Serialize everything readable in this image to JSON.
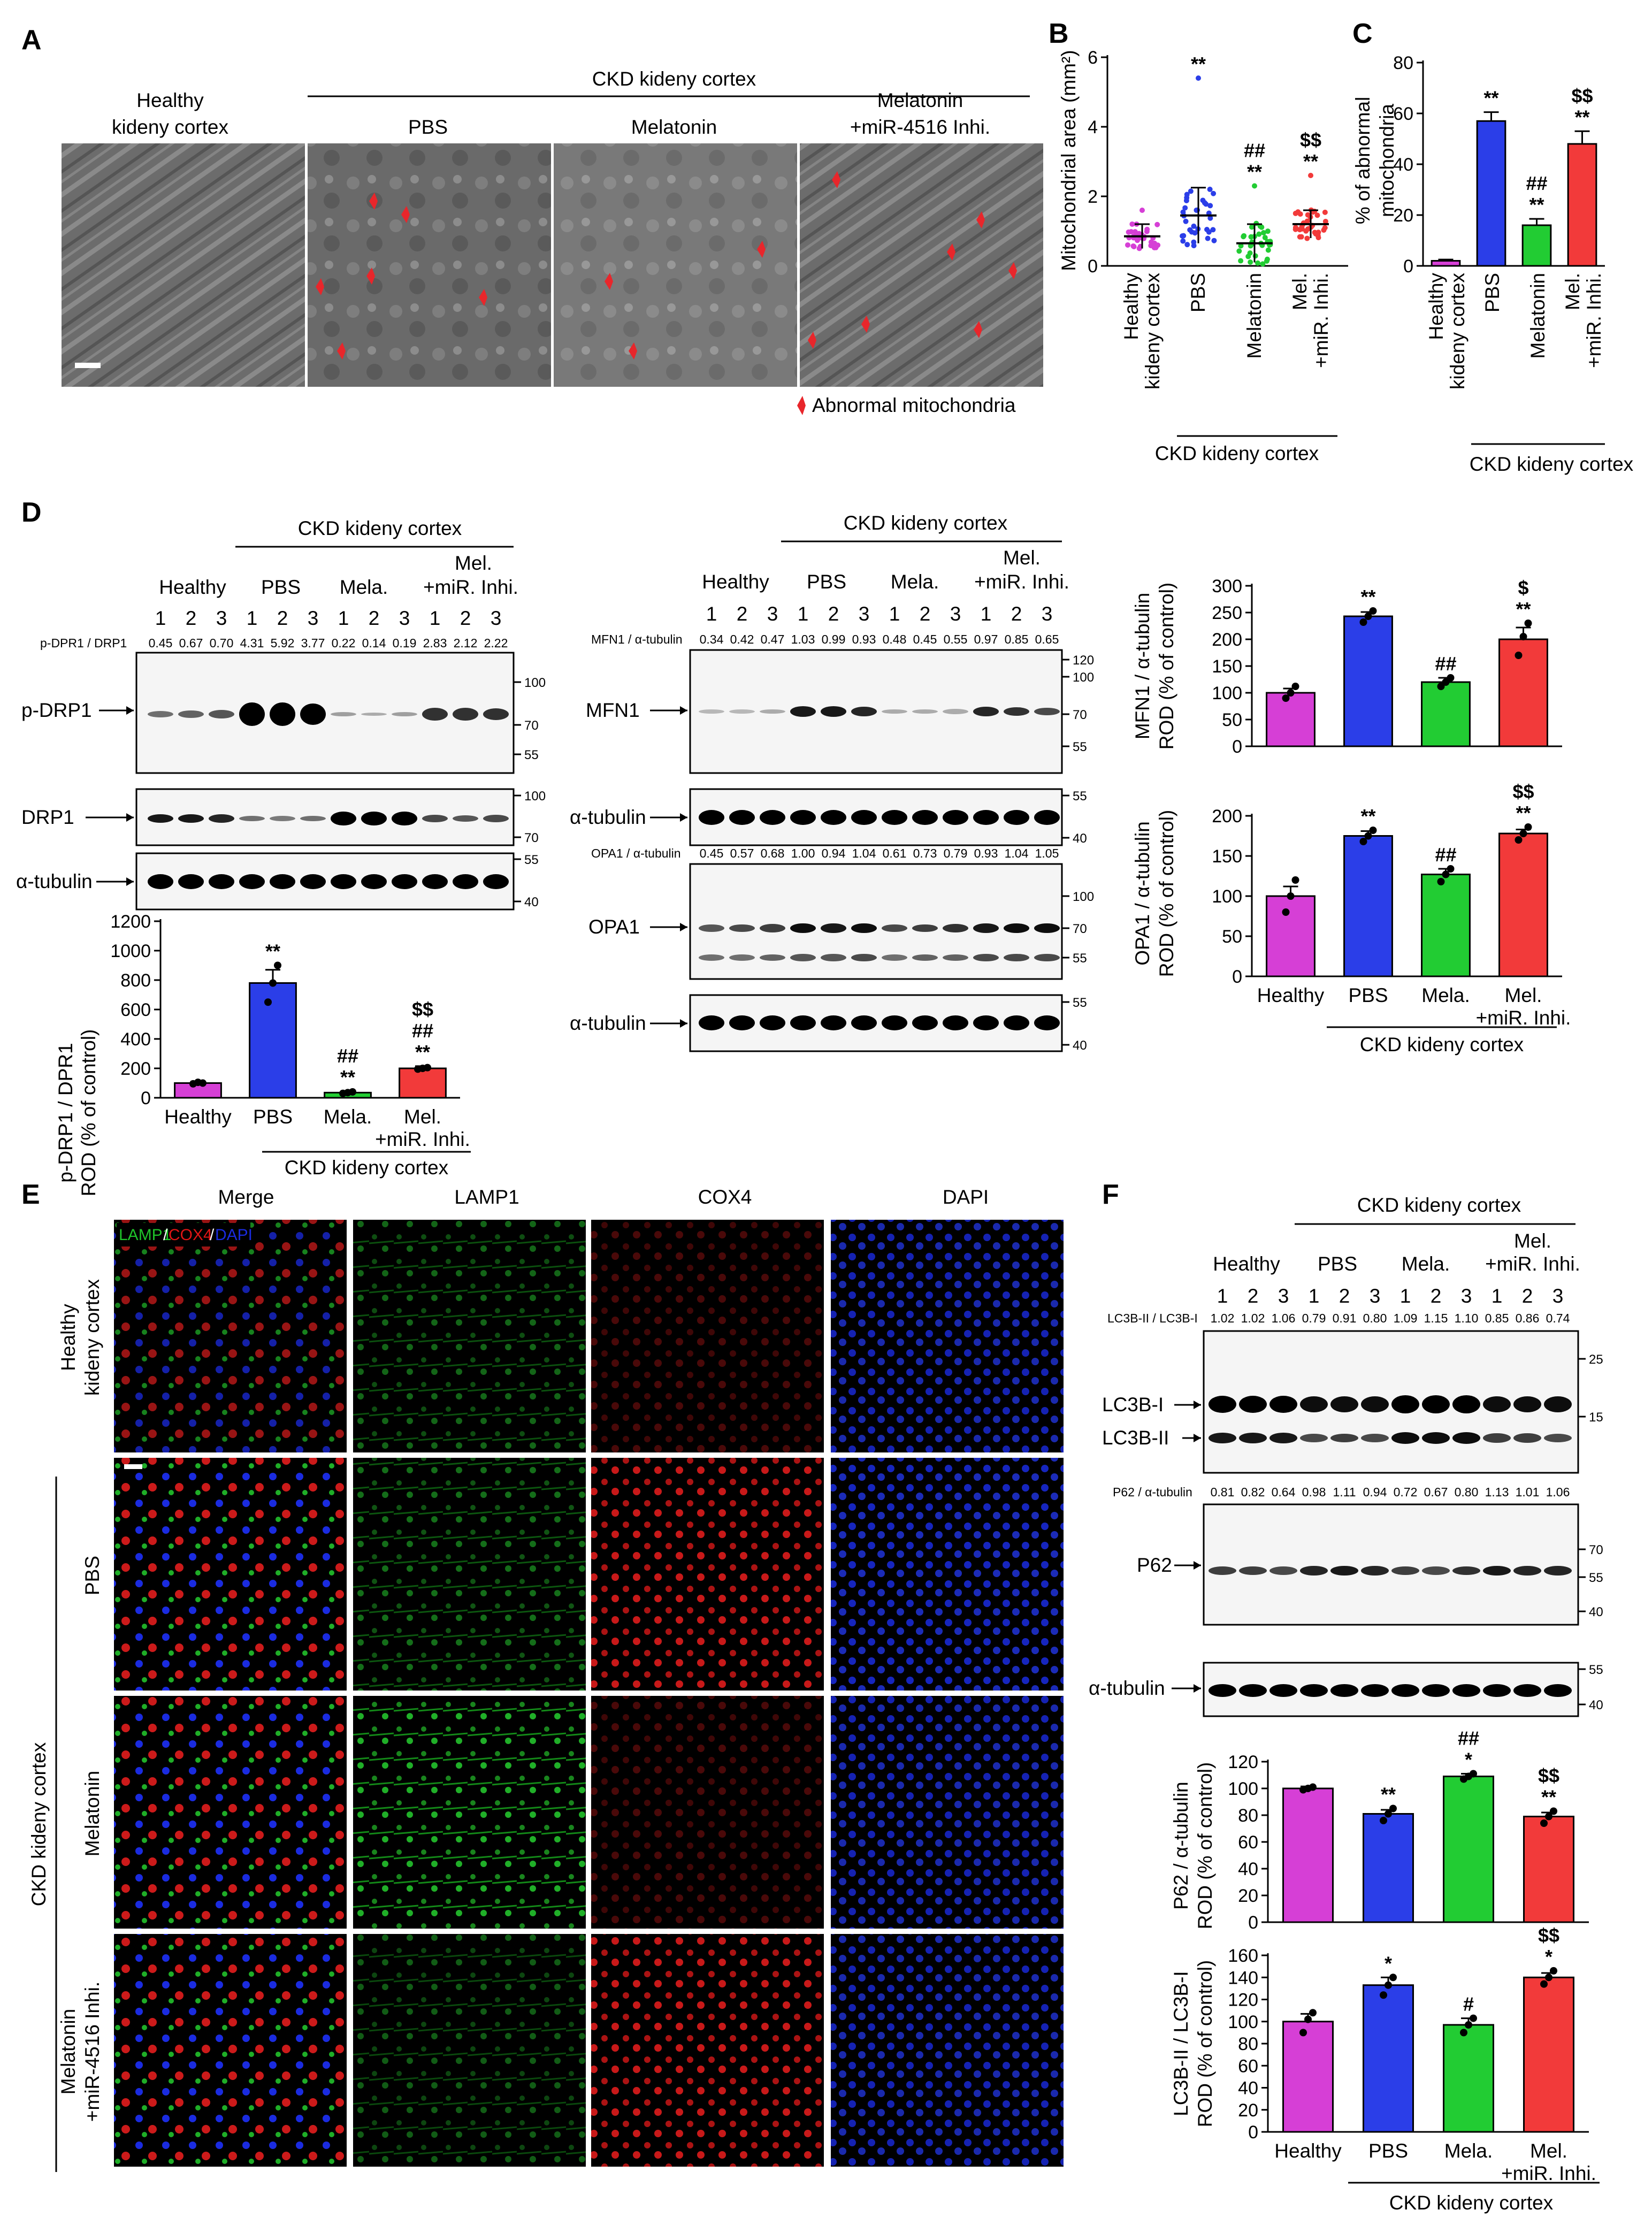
{
  "panels": {
    "A": {
      "letter": "A",
      "group_title": "CKD kideny cortex",
      "col1_line1": "Healthy",
      "col1_line2": "kideny cortex",
      "col2": "PBS",
      "col3": "Melatonin",
      "col4_line1": "Melatonin",
      "col4_line2": "+miR-4516 Inhi.",
      "legend": "Abnormal mitochondria",
      "colors": {
        "arrow": "#e8262b",
        "em_tone": "#6f6f6f"
      }
    },
    "B": {
      "letter": "B",
      "group_label": "CKD kideny cortex",
      "ylabel": "Mitochondrial area (mm²)"
    },
    "C": {
      "letter": "C",
      "group_label": "CKD kideny cortex",
      "ylabel_line1": "% of abnormal",
      "ylabel_line2": "mitochondria"
    },
    "D": {
      "letter": "D",
      "group_title": "CKD kideny cortex",
      "groups": [
        "Healthy",
        "PBS",
        "Mela.",
        "+miR. Inhi."
      ],
      "mel_label": "Mel.",
      "lanes": [
        "1",
        "2",
        "3",
        "1",
        "2",
        "3",
        "1",
        "2",
        "3",
        "1",
        "2",
        "3"
      ],
      "ratio_label": "p-DPR1 / DRP1",
      "ratios": [
        "0.45",
        "0.67",
        "0.70",
        "4.31",
        "5.92",
        "3.77",
        "0.22",
        "0.14",
        "0.19",
        "2.83",
        "2.12",
        "2.22"
      ],
      "blot_labels": [
        "p-DRP1",
        "DRP1",
        "α-tubulin"
      ],
      "mw_pdrp1": [
        "100",
        "70",
        "55"
      ],
      "mw_drp1": [
        "100",
        "70"
      ],
      "mw_tub": [
        "55",
        "40"
      ],
      "mid": {
        "group_title": "CKD kideny cortex",
        "mfn1_ratio_label": "MFN1 / α-tubulin",
        "mfn1_ratios": [
          "0.34",
          "0.42",
          "0.47",
          "1.03",
          "0.99",
          "0.93",
          "0.48",
          "0.45",
          "0.55",
          "0.97",
          "0.85",
          "0.65"
        ],
        "opa1_ratio_label": "OPA1 / α-tubulin",
        "opa1_ratios": [
          "0.45",
          "0.57",
          "0.68",
          "1.00",
          "0.94",
          "1.04",
          "0.61",
          "0.73",
          "0.79",
          "0.93",
          "1.04",
          "1.05"
        ],
        "blot_labels": [
          "MFN1",
          "α-tubulin",
          "OPA1",
          "α-tubulin"
        ],
        "mw_mfn1": [
          "120",
          "100",
          "70",
          "55"
        ],
        "mw_tub": [
          "55",
          "40"
        ],
        "mw_opa1": [
          "100",
          "70",
          "55"
        ],
        "mw_tub2": [
          "55",
          "40"
        ]
      }
    },
    "E": {
      "letter": "E",
      "columns": [
        "Merge",
        "LAMP1",
        "COX4",
        "DAPI"
      ],
      "legend_parts": [
        "LAMP1",
        "/",
        "COX4",
        "/",
        "DAPI"
      ],
      "row1_line1": "Healthy",
      "row1_line2": "kideny cortex",
      "row2": "PBS",
      "row3": "Melatonin",
      "row4_line1": "Melatonin",
      "row4_line2": "+miR-4516 Inhi.",
      "side_label": "CKD kideny cortex",
      "colors": {
        "lamp1": "#1fc42a",
        "cox4": "#e01515",
        "dapi": "#1a2be0"
      }
    },
    "F": {
      "letter": "F",
      "group_title": "CKD kideny cortex",
      "groups": [
        "Healthy",
        "PBS",
        "Mela.",
        "+miR. Inhi."
      ],
      "mel_label": "Mel.",
      "lanes": [
        "1",
        "2",
        "3",
        "1",
        "2",
        "3",
        "1",
        "2",
        "3",
        "1",
        "2",
        "3"
      ],
      "lc3_ratio_label": "LC3B-II / LC3B-I",
      "lc3_ratios": [
        "1.02",
        "1.02",
        "1.06",
        "0.79",
        "0.91",
        "0.80",
        "1.09",
        "1.15",
        "1.10",
        "0.85",
        "0.86",
        "0.74"
      ],
      "p62_ratio_label": "P62 / α-tubulin",
      "p62_ratios": [
        "0.81",
        "0.82",
        "0.64",
        "0.98",
        "1.11",
        "0.94",
        "0.72",
        "0.67",
        "0.80",
        "1.13",
        "1.01",
        "1.06"
      ],
      "blot_labels": [
        "LC3B-I",
        "LC3B-II",
        "P62",
        "α-tubulin"
      ],
      "mw_lc3": [
        "25",
        "15"
      ],
      "mw_p62": [
        "70",
        "55",
        "40"
      ],
      "mw_tub": [
        "55",
        "40"
      ]
    }
  },
  "chart_data": [
    {
      "id": "B",
      "type": "scatter",
      "categories": [
        "Healthy kideny cortex",
        "PBS",
        "Melatonin",
        "Mel. +miR. Inhi."
      ],
      "ylabel": "Mitochondrial area (mm²)",
      "ylim": [
        0,
        6
      ],
      "yticks": [
        0,
        2,
        4,
        6
      ],
      "means": [
        0.85,
        1.45,
        0.65,
        1.2
      ],
      "errors": [
        0.35,
        0.8,
        0.55,
        0.4
      ],
      "max_points": [
        1.6,
        5.4,
        2.3,
        2.6
      ],
      "significance": [
        "",
        "**",
        "##|**",
        "$$|**"
      ],
      "colors": [
        "#d63fd6",
        "#2b3ee8",
        "#22cc33",
        "#f23a3a"
      ]
    },
    {
      "id": "C",
      "type": "bar",
      "categories": [
        "Healthy kideny cortex",
        "PBS",
        "Melatonin",
        "Mel. +miR. Inhi."
      ],
      "ylabel": "% of abnormal mitochondria",
      "ylim": [
        0,
        80
      ],
      "yticks": [
        0,
        20,
        40,
        60,
        80
      ],
      "values": [
        2,
        57,
        16,
        48
      ],
      "errors": [
        0.5,
        3.5,
        2.5,
        5
      ],
      "significance": [
        "",
        "**",
        "##|**",
        "$$|**"
      ],
      "colors": [
        "#d63fd6",
        "#2b3ee8",
        "#22cc33",
        "#f23a3a"
      ]
    },
    {
      "id": "D_pdrp1",
      "type": "bar",
      "categories": [
        "Healthy",
        "PBS",
        "Mela.",
        "Mel. +miR. Inhi."
      ],
      "ylabel_line1": "p-DRP1 / DPR1",
      "ylabel_line2": "ROD (% of control)",
      "ylim": [
        0,
        1200
      ],
      "yticks": [
        0,
        200,
        400,
        600,
        800,
        1000,
        1200
      ],
      "values": [
        100,
        780,
        35,
        200
      ],
      "errors": [
        10,
        90,
        8,
        15
      ],
      "points": [
        [
          95,
          105,
          100
        ],
        [
          650,
          780,
          900
        ],
        [
          30,
          35,
          40
        ],
        [
          195,
          200,
          205
        ]
      ],
      "significance": [
        "",
        "**",
        "##|**",
        "$$|##|**"
      ],
      "colors": [
        "#d63fd6",
        "#2b3ee8",
        "#22cc33",
        "#f23a3a"
      ],
      "group_label": "CKD kideny cortex"
    },
    {
      "id": "D_mfn1",
      "type": "bar",
      "categories": [
        "Healthy",
        "PBS",
        "Mela.",
        "Mel. +miR. Inhi."
      ],
      "ylabel_line1": "MFN1 / α-tubulin",
      "ylabel_line2": "ROD (% of control)",
      "ylim": [
        0,
        300
      ],
      "yticks": [
        0,
        50,
        100,
        150,
        200,
        250,
        300
      ],
      "values": [
        100,
        243,
        120,
        200
      ],
      "errors": [
        8,
        8,
        8,
        22
      ],
      "points": [
        [
          90,
          100,
          112
        ],
        [
          232,
          243,
          253
        ],
        [
          112,
          120,
          128
        ],
        [
          170,
          205,
          230
        ]
      ],
      "significance": [
        "",
        "**",
        "##",
        "$|**"
      ],
      "colors": [
        "#d63fd6",
        "#2b3ee8",
        "#22cc33",
        "#f23a3a"
      ]
    },
    {
      "id": "D_opa1",
      "type": "bar",
      "categories": [
        "Healthy",
        "PBS",
        "Mela.",
        "Mel. +miR. Inhi."
      ],
      "ylabel_line1": "OPA1 / α-tubulin",
      "ylabel_line2": "ROD (% of control)",
      "ylim": [
        0,
        200
      ],
      "yticks": [
        0,
        50,
        100,
        150,
        200
      ],
      "values": [
        100,
        175,
        127,
        178
      ],
      "errors": [
        12,
        6,
        7,
        5
      ],
      "points": [
        [
          80,
          100,
          120
        ],
        [
          168,
          175,
          182
        ],
        [
          118,
          127,
          134
        ],
        [
          170,
          178,
          186
        ]
      ],
      "significance": [
        "",
        "**",
        "##",
        "$$|**"
      ],
      "colors": [
        "#d63fd6",
        "#2b3ee8",
        "#22cc33",
        "#f23a3a"
      ],
      "group_label": "CKD kideny cortex"
    },
    {
      "id": "F_p62",
      "type": "bar",
      "categories": [
        "Healthy",
        "PBS",
        "Mela.",
        "Mel. +miR. Inhi."
      ],
      "ylabel_line1": "P62 / α-tubulin",
      "ylabel_line2": "ROD (% of control)",
      "ylim": [
        0,
        120
      ],
      "yticks": [
        0,
        20,
        40,
        60,
        80,
        100,
        120
      ],
      "values": [
        100,
        81,
        109,
        79
      ],
      "errors": [
        1.5,
        3,
        2,
        3
      ],
      "points": [
        [
          99,
          100,
          101
        ],
        [
          76,
          81,
          85
        ],
        [
          107,
          109,
          111
        ],
        [
          74,
          79,
          83
        ]
      ],
      "significance": [
        "",
        "**",
        "##|*",
        "$$|**"
      ],
      "colors": [
        "#d63fd6",
        "#2b3ee8",
        "#22cc33",
        "#f23a3a"
      ]
    },
    {
      "id": "F_lc3",
      "type": "bar",
      "categories": [
        "Healthy",
        "PBS",
        "Mela.",
        "Mel. +miR. Inhi."
      ],
      "ylabel_line1": "LC3B-II / LC3B-I",
      "ylabel_line2": "ROD (% of control)",
      "ylim": [
        0,
        160
      ],
      "yticks": [
        0,
        20,
        40,
        60,
        80,
        100,
        120,
        140,
        160
      ],
      "values": [
        100,
        133,
        97,
        140
      ],
      "errors": [
        7,
        7,
        6,
        4
      ],
      "points": [
        [
          90,
          102,
          108
        ],
        [
          124,
          133,
          140
        ],
        [
          90,
          97,
          103
        ],
        [
          134,
          140,
          146
        ]
      ],
      "significance": [
        "",
        "*",
        "#",
        "$$|*"
      ],
      "colors": [
        "#d63fd6",
        "#2b3ee8",
        "#22cc33",
        "#f23a3a"
      ],
      "group_label": "CKD kideny cortex"
    }
  ]
}
